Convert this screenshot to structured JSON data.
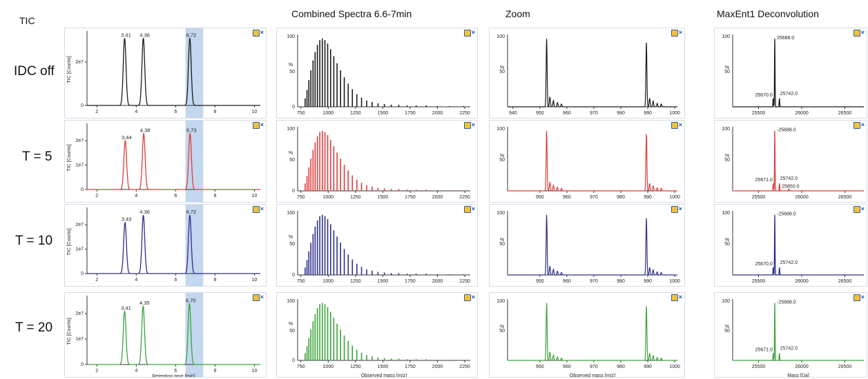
{
  "column_titles": [
    "TIC",
    "Combined Spectra 6.6-7min",
    "Zoom",
    "MaxEnt1 Deconvolution"
  ],
  "row_labels": [
    "IDC off",
    "T = 5",
    "T = 10",
    "T = 20"
  ],
  "colors": {
    "series": [
      "#1a1a1a",
      "#e03c3c",
      "#2d2d8c",
      "#3aa33a"
    ],
    "highlight": "#aac6e8",
    "frame": "#d4dbe6"
  },
  "icons": [
    "settings-icon",
    "close-icon"
  ],
  "chart_data": [
    {
      "type": "line",
      "panel": "TIC",
      "xlabel": "Retention time [min]",
      "ylabel": "TIC [Counts]",
      "xlim": [
        1.5,
        10.3
      ],
      "xticks": [
        2,
        4,
        6,
        8,
        10
      ],
      "highlight_range": [
        6.5,
        7.4
      ],
      "series": [
        {
          "yticks": [
            {
              "v": 0,
              "t": "0"
            },
            {
              "v": 2,
              "t": "2e7"
            }
          ],
          "ymax": 3.3,
          "peaks": [
            {
              "x": 3.41,
              "h": 3.1,
              "label": "3.41"
            },
            {
              "x": 4.36,
              "h": 3.1,
              "label": "4.36"
            },
            {
              "x": 6.72,
              "h": 3.1,
              "label": "6.72"
            }
          ]
        },
        {
          "yticks": [
            {
              "v": 0,
              "t": "0"
            },
            {
              "v": 1,
              "t": "1e7"
            },
            {
              "v": 2,
              "t": "2e7"
            }
          ],
          "ymax": 2.6,
          "peaks": [
            {
              "x": 3.44,
              "h": 2.0,
              "label": "3.44"
            },
            {
              "x": 4.38,
              "h": 2.3,
              "label": "4.38"
            },
            {
              "x": 6.73,
              "h": 2.3,
              "label": "6.73"
            }
          ]
        },
        {
          "yticks": [
            {
              "v": 0,
              "t": "0"
            },
            {
              "v": 1,
              "t": "1e7"
            },
            {
              "v": 2,
              "t": "2e7"
            }
          ],
          "ymax": 2.6,
          "peaks": [
            {
              "x": 3.43,
              "h": 2.1,
              "label": "3.43"
            },
            {
              "x": 4.36,
              "h": 2.4,
              "label": "4.36"
            },
            {
              "x": 6.72,
              "h": 2.4,
              "label": "6.72"
            }
          ]
        },
        {
          "yticks": [
            {
              "v": 0,
              "t": "0"
            },
            {
              "v": 1,
              "t": "1e7"
            },
            {
              "v": 2,
              "t": "2e7"
            }
          ],
          "ymax": 2.6,
          "peaks": [
            {
              "x": 3.41,
              "h": 2.1,
              "label": "3.41"
            },
            {
              "x": 4.35,
              "h": 2.3,
              "label": "4.35"
            },
            {
              "x": 6.7,
              "h": 2.4,
              "label": "6.70"
            }
          ]
        }
      ]
    },
    {
      "type": "bar",
      "panel": "Combined Spectra 6.6-7min",
      "xlabel": "Observed mass [m/z]",
      "ylabel": "%",
      "xlim": [
        720,
        2300
      ],
      "xticks": [
        750,
        1000,
        1250,
        1500,
        1750,
        2000,
        2250
      ],
      "ylim": [
        0,
        100
      ],
      "yticks": [
        0,
        50,
        100
      ],
      "x": [
        789,
        806,
        823,
        841,
        861,
        880,
        901,
        923,
        946,
        970,
        995,
        1022,
        1051,
        1081,
        1113,
        1147,
        1183,
        1221,
        1262,
        1305,
        1352,
        1402,
        1456,
        1514,
        1577,
        1646,
        1722,
        1805,
        1897,
        1998,
        2111,
        2238
      ],
      "values": [
        12,
        24,
        38,
        52,
        66,
        78,
        88,
        95,
        97,
        95,
        90,
        82,
        72,
        62,
        52,
        42,
        33,
        25,
        18,
        13,
        9,
        7,
        5,
        4,
        3,
        3,
        2,
        2,
        2,
        1,
        1,
        1
      ]
    },
    {
      "type": "line",
      "panel": "Zoom",
      "xlabel": "Observed mass [m/z]",
      "ylabel": "%",
      "xlim": [
        938,
        1001
      ],
      "ylim": [
        0,
        100
      ],
      "yticks": [
        50,
        100
      ],
      "xtick_sets": [
        [
          940,
          950,
          960,
          970,
          980,
          990,
          1000
        ],
        [
          950,
          960,
          970,
          980,
          990,
          1000
        ],
        [
          950,
          960,
          970,
          980,
          990,
          1000
        ],
        [
          950,
          960,
          970,
          980,
          990,
          1000
        ]
      ],
      "peaks": [
        {
          "x": 952.5,
          "h": 97
        },
        {
          "x": 953.7,
          "h": 14
        },
        {
          "x": 955.0,
          "h": 9
        },
        {
          "x": 956.5,
          "h": 6
        },
        {
          "x": 958.0,
          "h": 4
        },
        {
          "x": 989.5,
          "h": 92
        },
        {
          "x": 990.7,
          "h": 12
        },
        {
          "x": 992.0,
          "h": 8
        },
        {
          "x": 993.5,
          "h": 5
        },
        {
          "x": 995.0,
          "h": 4
        }
      ]
    },
    {
      "type": "line",
      "panel": "MaxEnt1 Deconvolution",
      "xlabel": "Mass [Da]",
      "ylabel": "%",
      "xlim": [
        25200,
        26720
      ],
      "xticks": [
        25500,
        26000,
        26500
      ],
      "ylim": [
        0,
        100
      ],
      "yticks": [
        50,
        100
      ],
      "series": [
        {
          "peaks": [
            {
              "x": 25688,
              "h": 97,
              "label": "25688.0"
            },
            {
              "x": 25670,
              "h": 12,
              "label": "25670.0"
            },
            {
              "x": 25742,
              "h": 12,
              "label": "25742.0"
            }
          ]
        },
        {
          "peaks": [
            {
              "x": 25688,
              "h": 97,
              "label": "25688.0"
            },
            {
              "x": 25671,
              "h": 12,
              "label": "25671.0"
            },
            {
              "x": 25742,
              "h": 12,
              "label": "25742.0"
            },
            {
              "x": 25850,
              "h": 3,
              "label": "25850.0"
            }
          ]
        },
        {
          "peaks": [
            {
              "x": 25688,
              "h": 97,
              "label": "25688.0"
            },
            {
              "x": 25670,
              "h": 12,
              "label": "25670.0"
            },
            {
              "x": 25742,
              "h": 12,
              "label": "25742.0"
            }
          ]
        },
        {
          "peaks": [
            {
              "x": 25688,
              "h": 97,
              "label": "25688.0"
            },
            {
              "x": 25671,
              "h": 12,
              "label": "25671.0"
            },
            {
              "x": 25742,
              "h": 12,
              "label": "25742.0"
            }
          ]
        }
      ]
    }
  ]
}
